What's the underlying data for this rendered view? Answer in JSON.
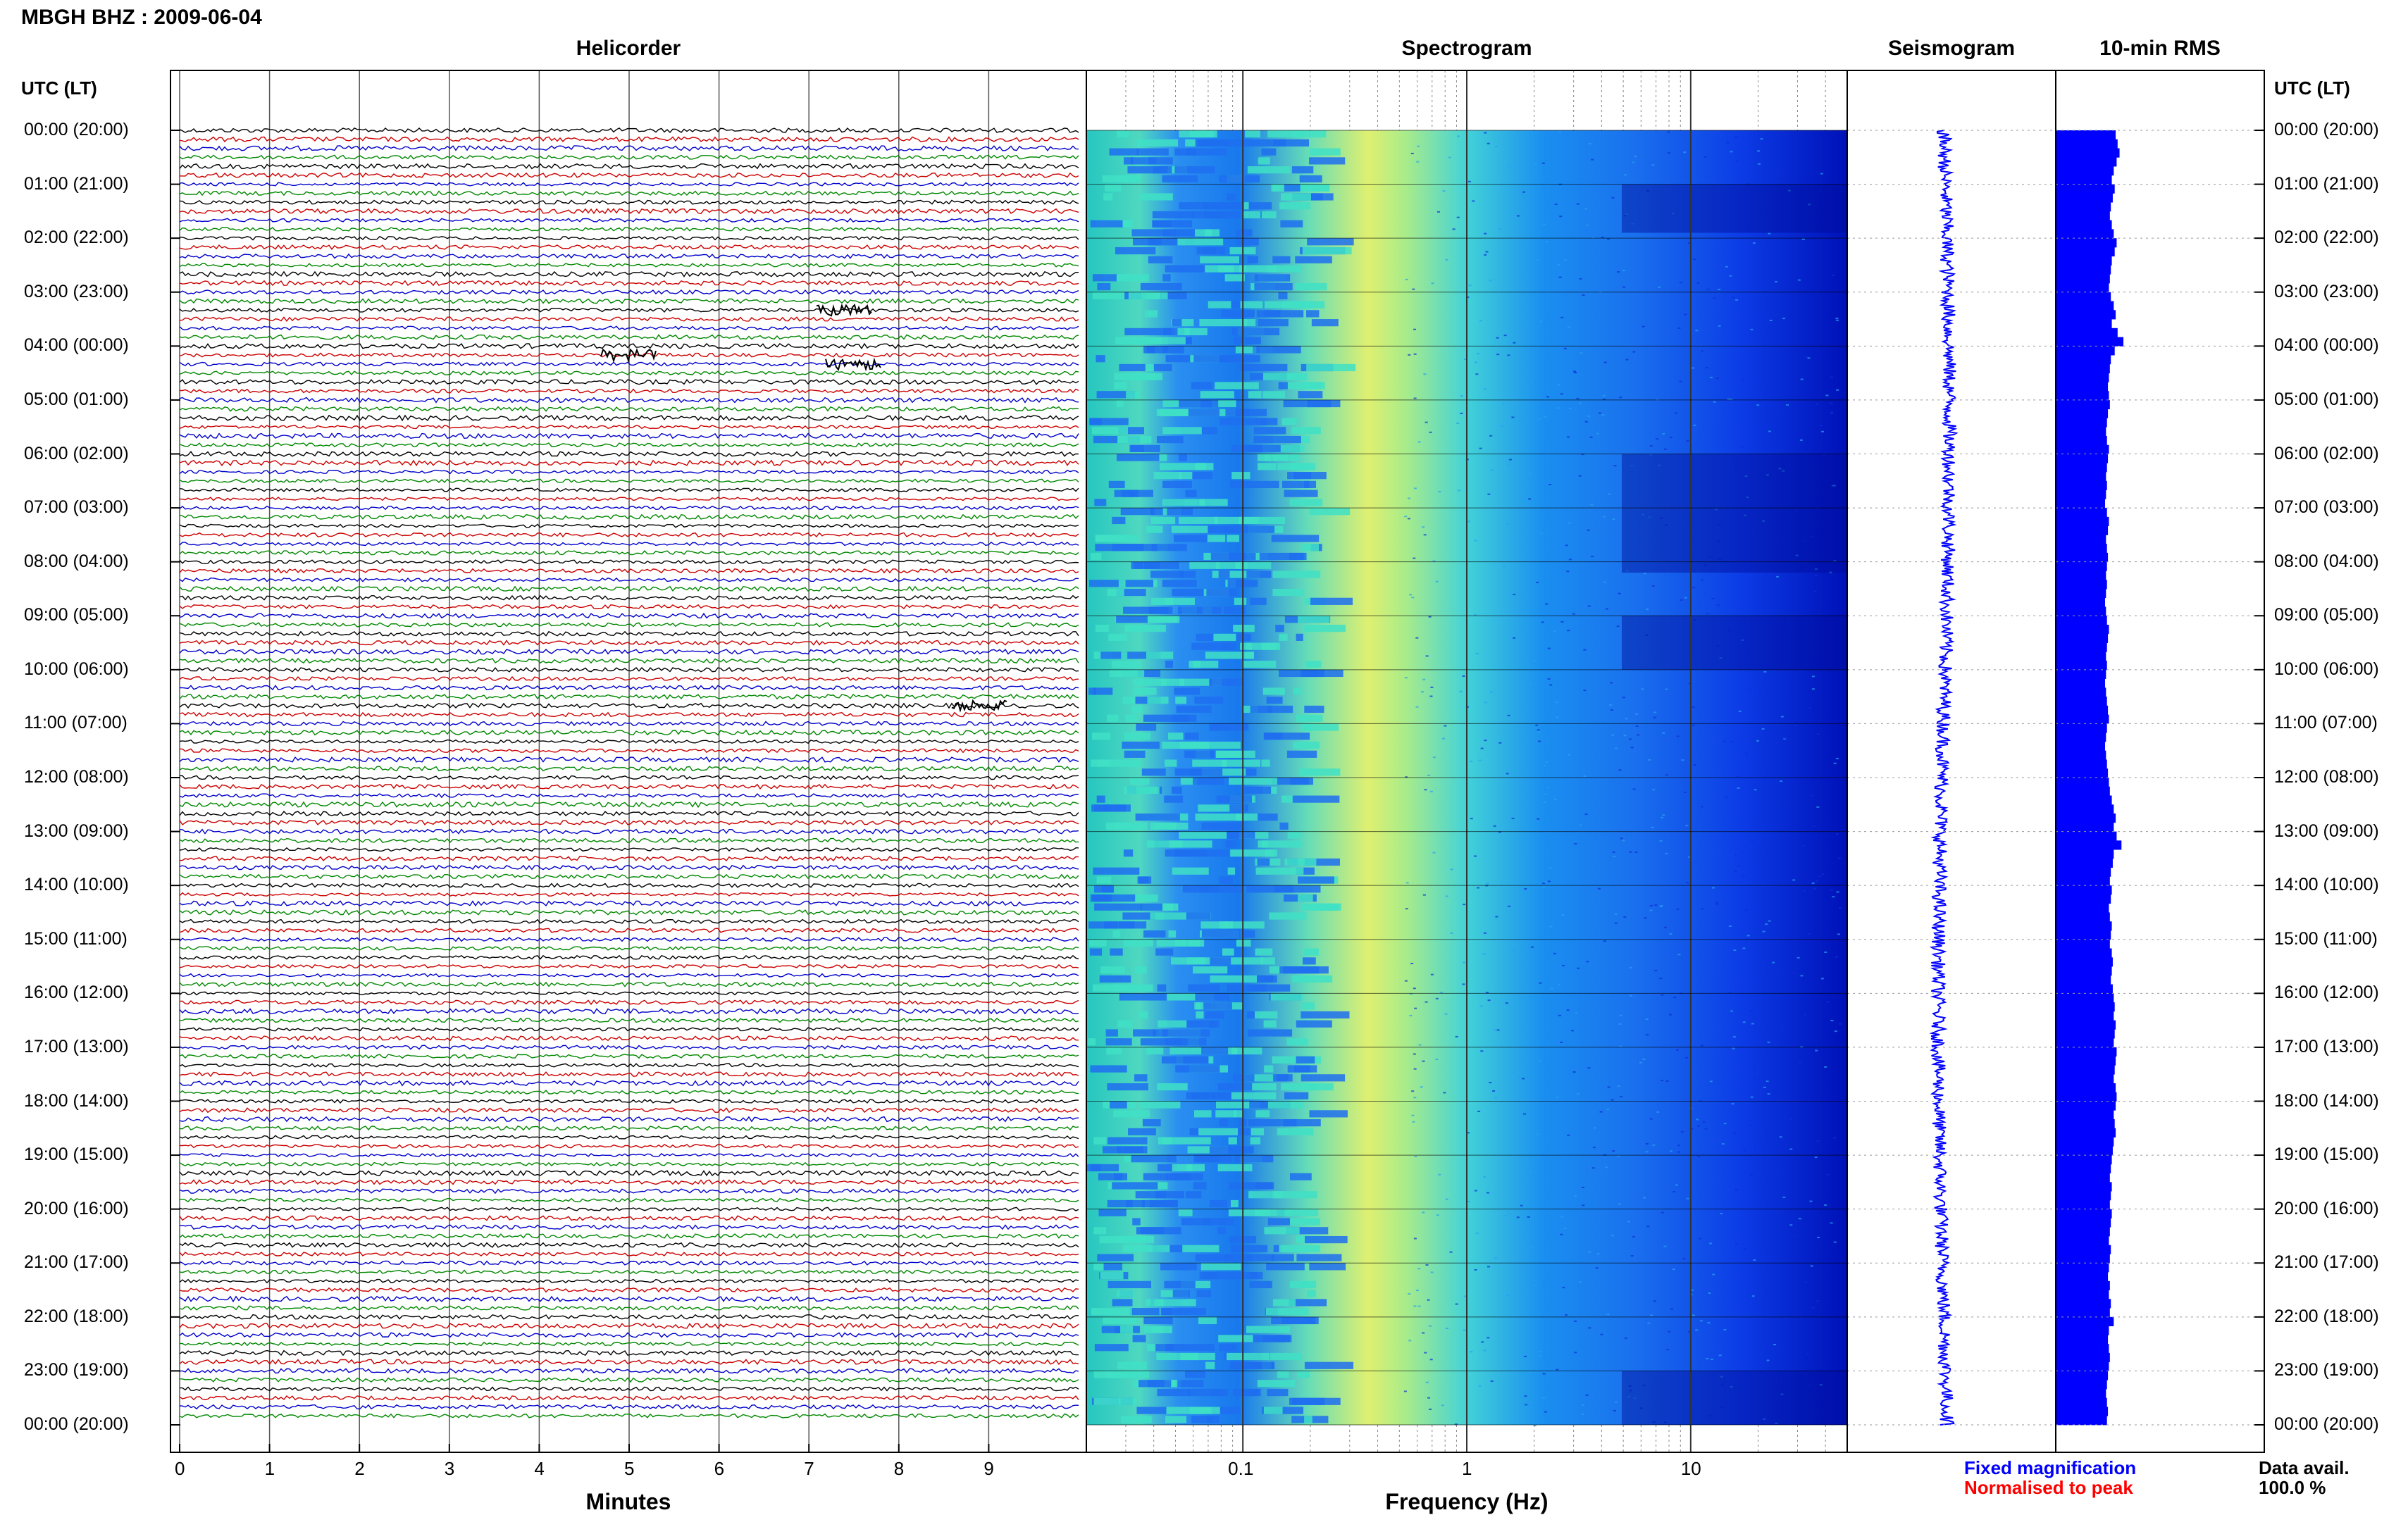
{
  "header": {
    "station_title": "MBGH BHZ : 2009-06-04"
  },
  "chart_data": [
    {
      "type": "line",
      "title": "Helicorder",
      "xlabel": "Minutes",
      "ylabel": "UTC (LT)",
      "x_ticks": [
        "0",
        "1",
        "2",
        "3",
        "4",
        "5",
        "6",
        "7",
        "8",
        "9"
      ],
      "xlim": [
        0,
        10
      ],
      "row_interval_minutes": 10,
      "rows": 144,
      "trace_colors": [
        "#000000",
        "#cc0000",
        "#0000cc",
        "#008800"
      ],
      "events": [
        {
          "time_utc": "03:20",
          "minute": 7.4
        },
        {
          "time_utc": "04:10",
          "minute": 5.0
        },
        {
          "time_utc": "04:20",
          "minute": 7.5
        },
        {
          "time_utc": "10:40",
          "minute": 8.9
        }
      ],
      "grid": true
    },
    {
      "type": "heatmap",
      "title": "Spectrogram",
      "xlabel": "Frequency (Hz)",
      "x_scale": "log",
      "xlim": [
        0.02,
        50
      ],
      "x_ticks": [
        "0.1",
        "1",
        "10"
      ],
      "colormap": [
        "#00008b",
        "#0000ff",
        "#1e90ff",
        "#00ced1",
        "#40e0d0",
        "#7fffd4",
        "#ffff66"
      ],
      "peak_frequency_band_hz": [
        0.25,
        0.5
      ]
    },
    {
      "type": "line",
      "title": "Seismogram",
      "series_color": "#0000ff"
    },
    {
      "type": "bar",
      "title": "10-min RMS",
      "series_color": "#0000ff",
      "relative_values": [
        0.62,
        0.64,
        0.66,
        0.63,
        0.6,
        0.58,
        0.61,
        0.59,
        0.57,
        0.56,
        0.58,
        0.6,
        0.63,
        0.61,
        0.58,
        0.57,
        0.56,
        0.55,
        0.57,
        0.6,
        0.62,
        0.58,
        0.64,
        0.7,
        0.61,
        0.57,
        0.56,
        0.55,
        0.54,
        0.55,
        0.56,
        0.54,
        0.53,
        0.52,
        0.53,
        0.55,
        0.54,
        0.53,
        0.52,
        0.53,
        0.52,
        0.51,
        0.53,
        0.55,
        0.54,
        0.52,
        0.53,
        0.54,
        0.53,
        0.52,
        0.53,
        0.52,
        0.51,
        0.52,
        0.53,
        0.55,
        0.54,
        0.53,
        0.52,
        0.53,
        0.52,
        0.51,
        0.52,
        0.53,
        0.54,
        0.55,
        0.53,
        0.52,
        0.51,
        0.52,
        0.53,
        0.54,
        0.55,
        0.56,
        0.58,
        0.6,
        0.62,
        0.6,
        0.63,
        0.68,
        0.6,
        0.59,
        0.57,
        0.56,
        0.58,
        0.57,
        0.55,
        0.56,
        0.58,
        0.57,
        0.56,
        0.58,
        0.59,
        0.58,
        0.57,
        0.59,
        0.6,
        0.61,
        0.6,
        0.62,
        0.61,
        0.6,
        0.63,
        0.62,
        0.61,
        0.6,
        0.62,
        0.63,
        0.62,
        0.6,
        0.61,
        0.62,
        0.6,
        0.59,
        0.58,
        0.57,
        0.56,
        0.58,
        0.57,
        0.56,
        0.58,
        0.57,
        0.56,
        0.55,
        0.57,
        0.56,
        0.55,
        0.54,
        0.56,
        0.55,
        0.57,
        0.56,
        0.6,
        0.55,
        0.54,
        0.55,
        0.56,
        0.55,
        0.54,
        0.53,
        0.52,
        0.53,
        0.54,
        0.53
      ]
    }
  ],
  "time_labels": [
    "00:00 (20:00)",
    "01:00 (21:00)",
    "02:00 (22:00)",
    "03:00 (23:00)",
    "04:00 (00:00)",
    "05:00 (01:00)",
    "06:00 (02:00)",
    "07:00 (03:00)",
    "08:00 (04:00)",
    "09:00 (05:00)",
    "10:00 (06:00)",
    "11:00 (07:00)",
    "12:00 (08:00)",
    "13:00 (09:00)",
    "14:00 (10:00)",
    "15:00 (11:00)",
    "16:00 (12:00)",
    "17:00 (13:00)",
    "18:00 (14:00)",
    "19:00 (15:00)",
    "20:00 (16:00)",
    "21:00 (17:00)",
    "22:00 (18:00)",
    "23:00 (19:00)",
    "00:00 (20:00)"
  ],
  "left_axis_title": "UTC (LT)",
  "right_axis_title": "UTC (LT)",
  "legend": {
    "fixed": "Fixed magnification",
    "fixed_color": "#0000ff",
    "normalised": "Normalised to peak",
    "normalised_color": "#ff0000"
  },
  "data_availability": {
    "label": "Data avail.",
    "value": "100.0 %"
  }
}
